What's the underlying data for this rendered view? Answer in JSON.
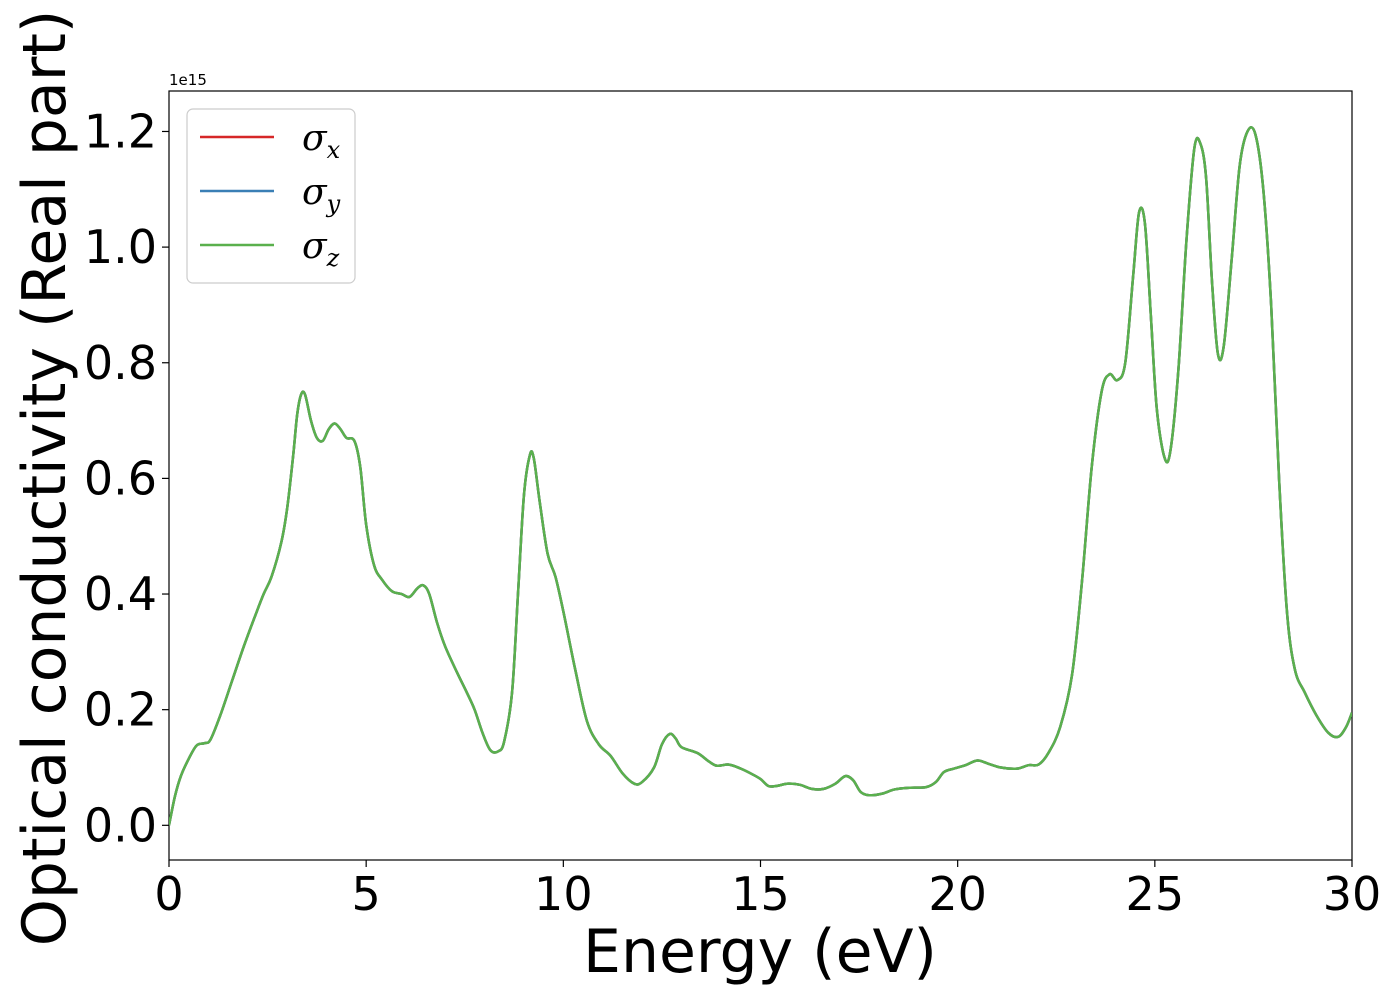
{
  "chart_data": {
    "type": "line",
    "title": "",
    "xlabel": "Energy (eV)",
    "ylabel": "Optical conductivity (Real part)",
    "y_offset_label": "1e15",
    "xlim": [
      0,
      30
    ],
    "ylim": [
      -0.06,
      1.27
    ],
    "y_scale_factor": 1000000000000000.0,
    "xticks": [
      0,
      5,
      10,
      15,
      20,
      25,
      30
    ],
    "xtick_labels": [
      "0",
      "5",
      "10",
      "15",
      "20",
      "25",
      "30"
    ],
    "yticks": [
      0.0,
      0.2,
      0.4,
      0.6,
      0.8,
      1.0,
      1.2
    ],
    "ytick_labels": [
      "0.0",
      "0.2",
      "0.4",
      "0.6",
      "0.8",
      "1.0",
      "1.2"
    ],
    "grid": false,
    "legend_position": "top-left",
    "legend": [
      {
        "symbol": "σ",
        "sub": "x",
        "color": "#d62728"
      },
      {
        "symbol": "σ",
        "sub": "y",
        "color": "#3a7fb5"
      },
      {
        "symbol": "σ",
        "sub": "z",
        "color": "#5ab04d"
      }
    ],
    "curve_points": [
      [
        0.0,
        0.0
      ],
      [
        0.15,
        0.05
      ],
      [
        0.3,
        0.085
      ],
      [
        0.5,
        0.115
      ],
      [
        0.7,
        0.138
      ],
      [
        0.9,
        0.142
      ],
      [
        1.05,
        0.148
      ],
      [
        1.3,
        0.19
      ],
      [
        1.6,
        0.25
      ],
      [
        1.9,
        0.31
      ],
      [
        2.2,
        0.365
      ],
      [
        2.4,
        0.4
      ],
      [
        2.6,
        0.43
      ],
      [
        2.85,
        0.49
      ],
      [
        3.0,
        0.55
      ],
      [
        3.15,
        0.64
      ],
      [
        3.25,
        0.71
      ],
      [
        3.35,
        0.745
      ],
      [
        3.45,
        0.745
      ],
      [
        3.6,
        0.7
      ],
      [
        3.75,
        0.67
      ],
      [
        3.9,
        0.665
      ],
      [
        4.05,
        0.685
      ],
      [
        4.2,
        0.695
      ],
      [
        4.35,
        0.685
      ],
      [
        4.5,
        0.67
      ],
      [
        4.7,
        0.665
      ],
      [
        4.85,
        0.62
      ],
      [
        5.0,
        0.52
      ],
      [
        5.2,
        0.45
      ],
      [
        5.4,
        0.425
      ],
      [
        5.65,
        0.405
      ],
      [
        5.9,
        0.4
      ],
      [
        6.1,
        0.395
      ],
      [
        6.3,
        0.41
      ],
      [
        6.45,
        0.415
      ],
      [
        6.6,
        0.4
      ],
      [
        6.8,
        0.35
      ],
      [
        7.0,
        0.31
      ],
      [
        7.3,
        0.265
      ],
      [
        7.55,
        0.23
      ],
      [
        7.75,
        0.2
      ],
      [
        7.95,
        0.16
      ],
      [
        8.15,
        0.13
      ],
      [
        8.35,
        0.128
      ],
      [
        8.5,
        0.145
      ],
      [
        8.7,
        0.23
      ],
      [
        8.85,
        0.4
      ],
      [
        9.0,
        0.57
      ],
      [
        9.15,
        0.64
      ],
      [
        9.25,
        0.635
      ],
      [
        9.4,
        0.56
      ],
      [
        9.6,
        0.47
      ],
      [
        9.8,
        0.43
      ],
      [
        10.0,
        0.37
      ],
      [
        10.3,
        0.27
      ],
      [
        10.6,
        0.18
      ],
      [
        10.9,
        0.14
      ],
      [
        11.2,
        0.12
      ],
      [
        11.5,
        0.09
      ],
      [
        11.8,
        0.072
      ],
      [
        12.0,
        0.075
      ],
      [
        12.3,
        0.1
      ],
      [
        12.5,
        0.14
      ],
      [
        12.7,
        0.158
      ],
      [
        12.85,
        0.15
      ],
      [
        13.0,
        0.135
      ],
      [
        13.4,
        0.125
      ],
      [
        13.7,
        0.11
      ],
      [
        13.9,
        0.103
      ],
      [
        14.2,
        0.105
      ],
      [
        14.5,
        0.098
      ],
      [
        14.8,
        0.088
      ],
      [
        15.0,
        0.08
      ],
      [
        15.2,
        0.068
      ],
      [
        15.4,
        0.068
      ],
      [
        15.7,
        0.072
      ],
      [
        16.0,
        0.07
      ],
      [
        16.3,
        0.063
      ],
      [
        16.6,
        0.063
      ],
      [
        16.9,
        0.072
      ],
      [
        17.15,
        0.085
      ],
      [
        17.35,
        0.078
      ],
      [
        17.55,
        0.057
      ],
      [
        17.8,
        0.052
      ],
      [
        18.1,
        0.055
      ],
      [
        18.4,
        0.062
      ],
      [
        18.8,
        0.065
      ],
      [
        19.2,
        0.066
      ],
      [
        19.45,
        0.075
      ],
      [
        19.65,
        0.092
      ],
      [
        19.9,
        0.098
      ],
      [
        20.2,
        0.104
      ],
      [
        20.5,
        0.112
      ],
      [
        20.8,
        0.106
      ],
      [
        21.1,
        0.1
      ],
      [
        21.5,
        0.098
      ],
      [
        21.8,
        0.104
      ],
      [
        22.05,
        0.105
      ],
      [
        22.3,
        0.125
      ],
      [
        22.6,
        0.17
      ],
      [
        22.9,
        0.26
      ],
      [
        23.15,
        0.42
      ],
      [
        23.4,
        0.62
      ],
      [
        23.65,
        0.75
      ],
      [
        23.85,
        0.78
      ],
      [
        24.05,
        0.77
      ],
      [
        24.25,
        0.8
      ],
      [
        24.45,
        0.95
      ],
      [
        24.6,
        1.06
      ],
      [
        24.75,
        1.04
      ],
      [
        24.9,
        0.88
      ],
      [
        25.05,
        0.72
      ],
      [
        25.25,
        0.635
      ],
      [
        25.4,
        0.65
      ],
      [
        25.6,
        0.79
      ],
      [
        25.8,
        1.01
      ],
      [
        26.0,
        1.17
      ],
      [
        26.15,
        1.18
      ],
      [
        26.3,
        1.12
      ],
      [
        26.45,
        0.94
      ],
      [
        26.6,
        0.815
      ],
      [
        26.75,
        0.83
      ],
      [
        26.95,
        0.98
      ],
      [
        27.15,
        1.14
      ],
      [
        27.35,
        1.2
      ],
      [
        27.55,
        1.195
      ],
      [
        27.75,
        1.1
      ],
      [
        27.95,
        0.9
      ],
      [
        28.15,
        0.6
      ],
      [
        28.35,
        0.37
      ],
      [
        28.55,
        0.27
      ],
      [
        28.8,
        0.23
      ],
      [
        29.1,
        0.19
      ],
      [
        29.4,
        0.16
      ],
      [
        29.65,
        0.153
      ],
      [
        29.85,
        0.17
      ],
      [
        30.0,
        0.195
      ]
    ]
  }
}
